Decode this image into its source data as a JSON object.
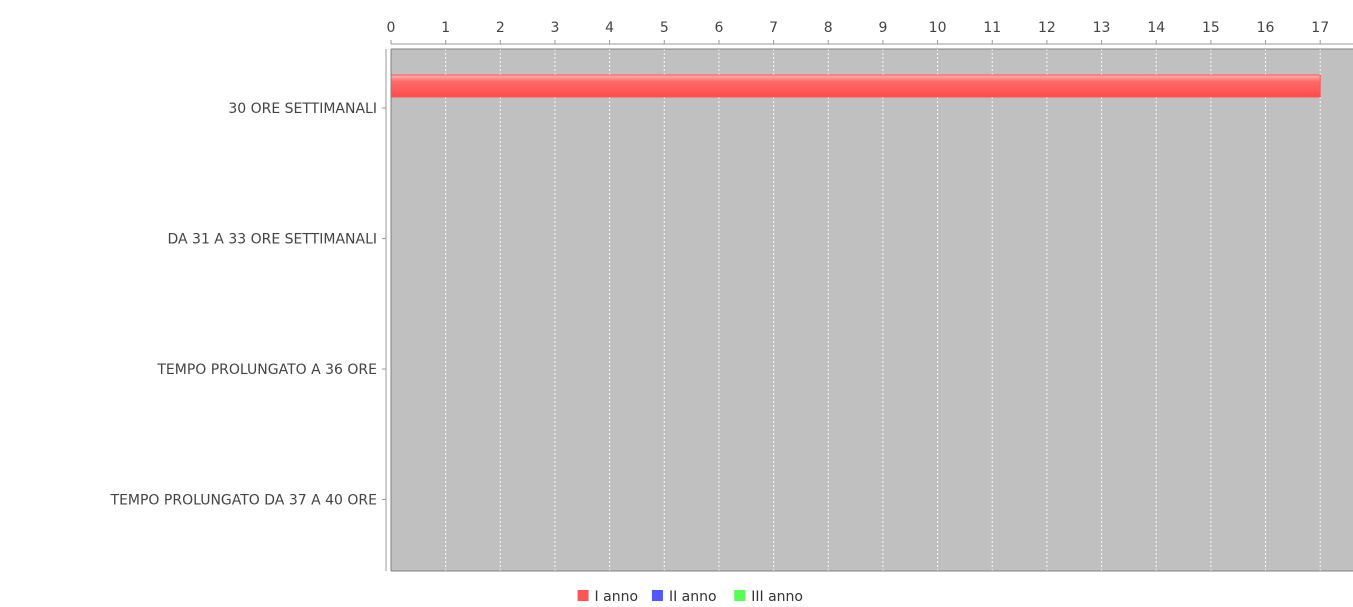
{
  "chart_data": {
    "type": "bar",
    "orientation": "horizontal",
    "title": "",
    "xlabel": "",
    "ylabel": "",
    "categories": [
      "30 ORE SETTIMANALI",
      "DA 31 A 33 ORE SETTIMANALI",
      "TEMPO PROLUNGATO A 36 ORE",
      "TEMPO PROLUNGATO DA 37 A 40 ORE"
    ],
    "series": [
      {
        "name": "I anno",
        "color": "#ff5555",
        "values": [
          17,
          0,
          0,
          0
        ]
      },
      {
        "name": "II anno",
        "color": "#5555ff",
        "values": [
          0,
          0,
          0,
          0
        ]
      },
      {
        "name": "III anno",
        "color": "#55ff55",
        "values": [
          0,
          0,
          0,
          0
        ]
      }
    ],
    "xlim": [
      0,
      17.6
    ],
    "xticks": [
      0,
      1,
      2,
      3,
      4,
      5,
      6,
      7,
      8,
      9,
      10,
      11,
      12,
      13,
      14,
      15,
      16,
      17
    ],
    "value_axis_position": "top",
    "grid": true,
    "legend": "bottom-center",
    "plot_background": "#c0c0c0"
  }
}
